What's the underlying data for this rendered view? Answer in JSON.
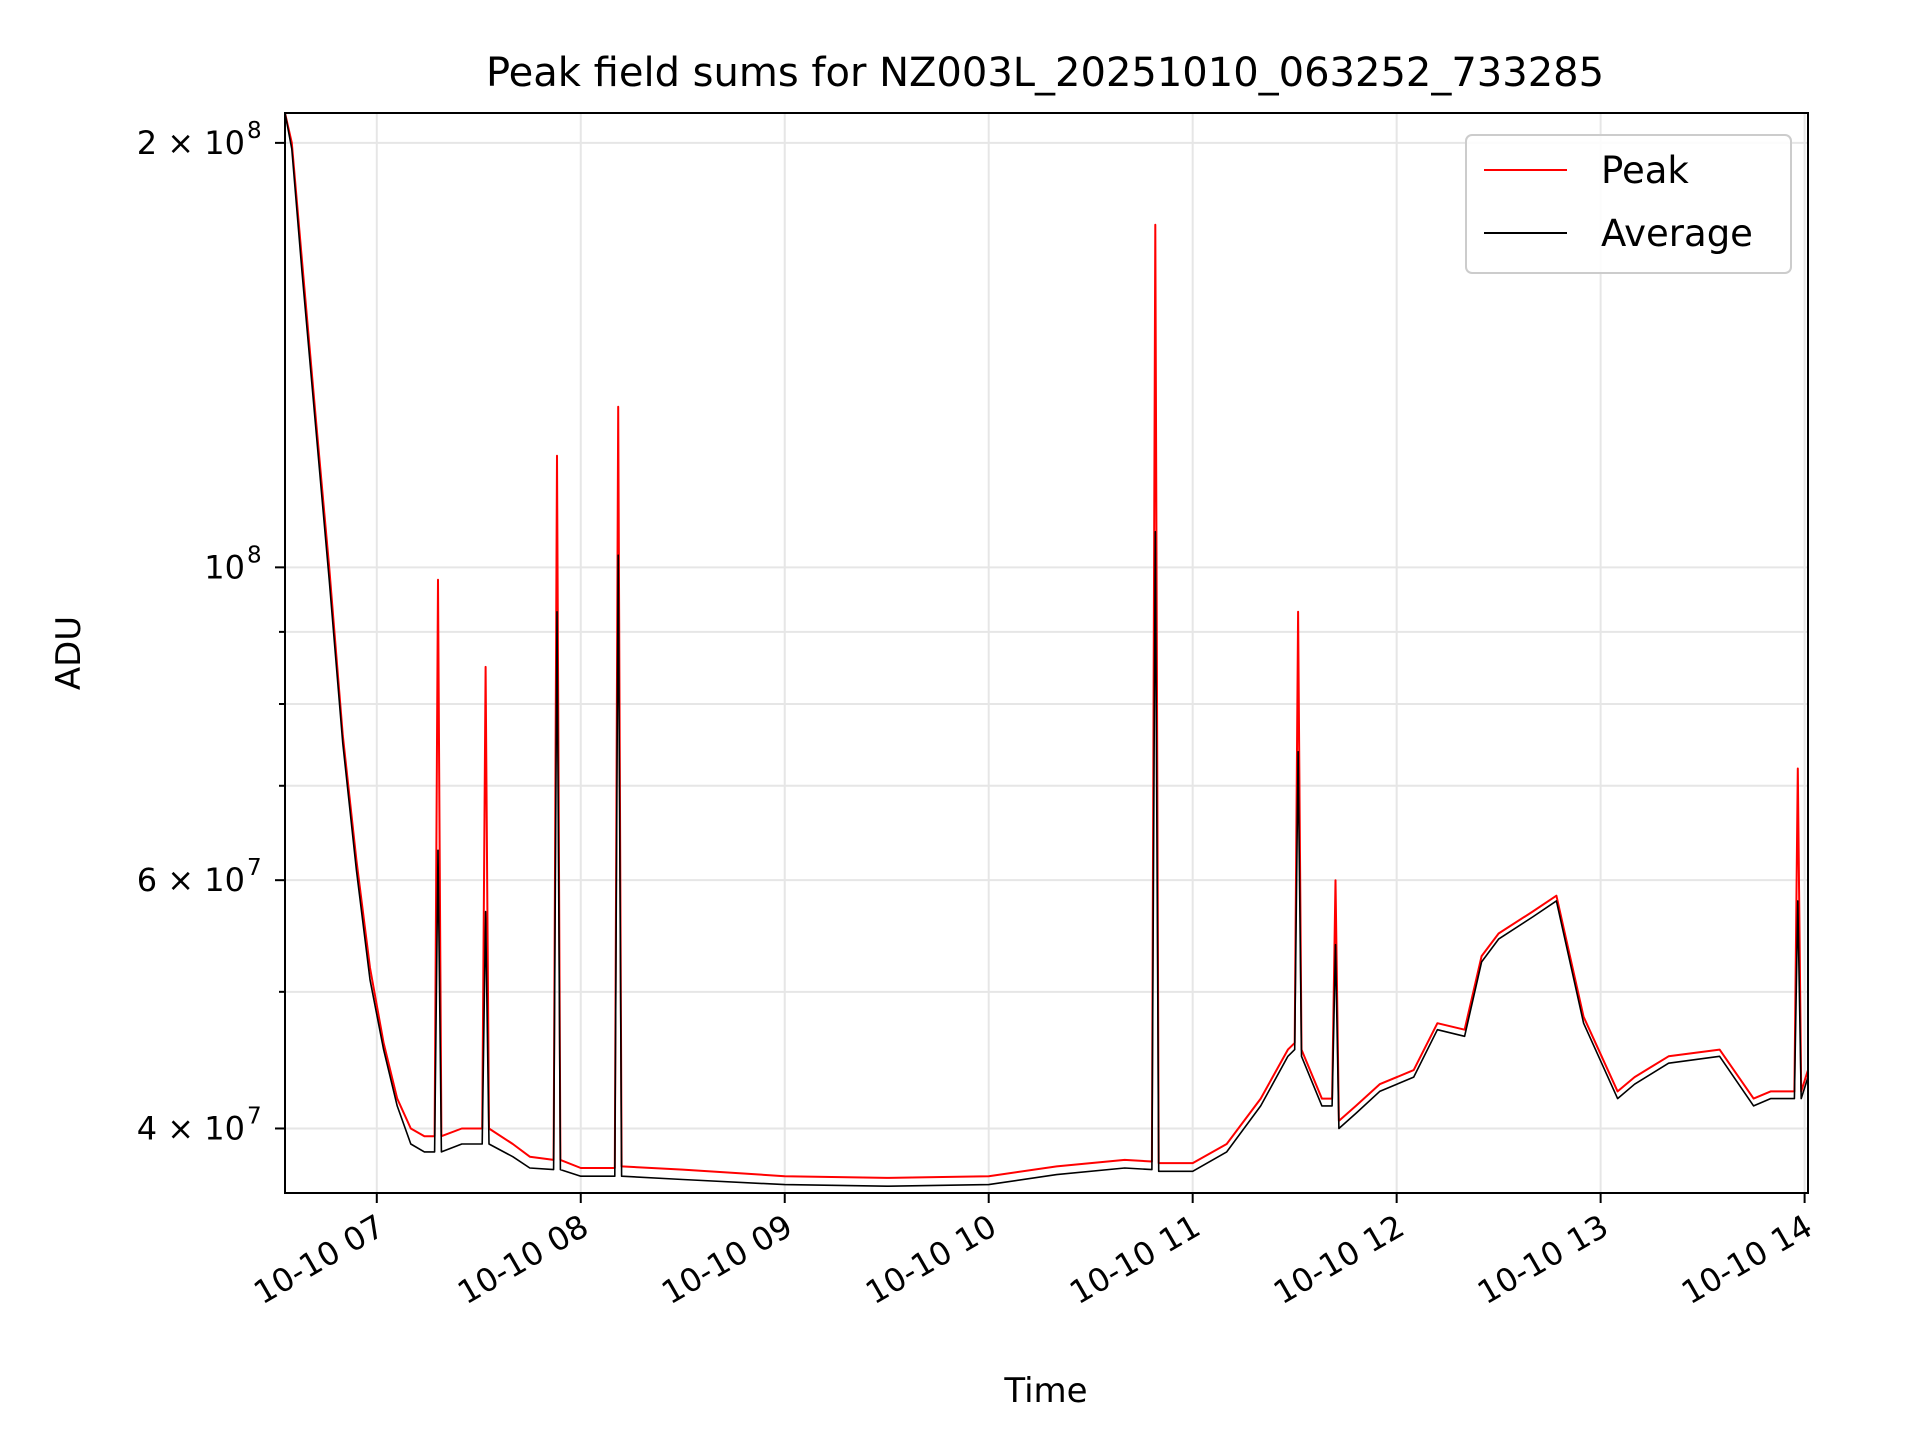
{
  "chart_data": {
    "type": "line",
    "title": "Peak field sums for NZ003L_20251010_063252_733285",
    "xlabel": "Time",
    "ylabel": "ADU",
    "yscale": "log",
    "ylim": [
      36000000,
      210000000
    ],
    "xlim": [
      "2025-10-10 06:33",
      "2025-10-10 14:01"
    ],
    "grid": true,
    "legend_position": "top-right",
    "x_ticks": [
      {
        "x": "2025-10-10 07:00",
        "label": "10-10 07"
      },
      {
        "x": "2025-10-10 08:00",
        "label": "10-10 08"
      },
      {
        "x": "2025-10-10 09:00",
        "label": "10-10 09"
      },
      {
        "x": "2025-10-10 10:00",
        "label": "10-10 10"
      },
      {
        "x": "2025-10-10 11:00",
        "label": "10-10 11"
      },
      {
        "x": "2025-10-10 12:00",
        "label": "10-10 12"
      },
      {
        "x": "2025-10-10 13:00",
        "label": "10-10 13"
      },
      {
        "x": "2025-10-10 14:00",
        "label": "10-10 14"
      }
    ],
    "y_ticks": [
      {
        "value": 40000000,
        "label_base": "4 × 10",
        "label_exp": "7"
      },
      {
        "value": 60000000,
        "label_base": "6 × 10",
        "label_exp": "7"
      },
      {
        "value": 100000000,
        "label_base": "10",
        "label_exp": "8"
      },
      {
        "value": 200000000,
        "label_base": "2 × 10",
        "label_exp": "8"
      }
    ],
    "y_minor_gridlines": [
      50000000,
      70000000,
      80000000,
      90000000
    ],
    "series": [
      {
        "name": "Peak",
        "color": "#ff0000",
        "x": [
          "2025-10-10 06:33",
          "2025-10-10 06:35",
          "2025-10-10 06:38",
          "2025-10-10 06:42",
          "2025-10-10 06:46",
          "2025-10-10 06:50",
          "2025-10-10 06:54",
          "2025-10-10 06:58",
          "2025-10-10 07:02",
          "2025-10-10 07:06",
          "2025-10-10 07:10",
          "2025-10-10 07:14",
          "2025-10-10 07:17",
          "2025-10-10 07:18",
          "2025-10-10 07:19",
          "2025-10-10 07:25",
          "2025-10-10 07:31",
          "2025-10-10 07:32",
          "2025-10-10 07:33",
          "2025-10-10 07:40",
          "2025-10-10 07:45",
          "2025-10-10 07:52",
          "2025-10-10 07:53",
          "2025-10-10 07:54",
          "2025-10-10 08:00",
          "2025-10-10 08:08",
          "2025-10-10 08:10",
          "2025-10-10 08:11",
          "2025-10-10 08:12",
          "2025-10-10 08:30",
          "2025-10-10 09:00",
          "2025-10-10 09:30",
          "2025-10-10 10:00",
          "2025-10-10 10:20",
          "2025-10-10 10:40",
          "2025-10-10 10:48",
          "2025-10-10 10:49",
          "2025-10-10 10:50",
          "2025-10-10 11:00",
          "2025-10-10 11:10",
          "2025-10-10 11:20",
          "2025-10-10 11:28",
          "2025-10-10 11:30",
          "2025-10-10 11:31",
          "2025-10-10 11:32",
          "2025-10-10 11:38",
          "2025-10-10 11:41",
          "2025-10-10 11:42",
          "2025-10-10 11:43",
          "2025-10-10 11:48",
          "2025-10-10 11:55",
          "2025-10-10 12:05",
          "2025-10-10 12:12",
          "2025-10-10 12:20",
          "2025-10-10 12:25",
          "2025-10-10 12:30",
          "2025-10-10 12:40",
          "2025-10-10 12:47",
          "2025-10-10 12:55",
          "2025-10-10 13:05",
          "2025-10-10 13:10",
          "2025-10-10 13:20",
          "2025-10-10 13:35",
          "2025-10-10 13:45",
          "2025-10-10 13:50",
          "2025-10-10 13:55",
          "2025-10-10 13:57",
          "2025-10-10 13:58",
          "2025-10-10 13:59",
          "2025-10-10 14:01"
        ],
        "values": [
          210000000,
          200000000,
          165000000,
          128000000,
          100000000,
          76000000,
          62000000,
          52000000,
          46000000,
          42000000,
          40000000,
          39500000,
          39500000,
          98000000,
          39500000,
          40000000,
          40000000,
          85000000,
          40000000,
          39000000,
          38200000,
          38000000,
          120000000,
          38000000,
          37500000,
          37500000,
          37500000,
          130000000,
          37600000,
          37400000,
          37000000,
          36900000,
          37000000,
          37600000,
          38000000,
          37900000,
          175000000,
          37800000,
          37800000,
          39000000,
          42000000,
          45500000,
          46000000,
          93000000,
          45500000,
          42000000,
          42000000,
          60000000,
          40500000,
          41500000,
          43000000,
          44000000,
          47500000,
          47000000,
          53000000,
          55000000,
          57000000,
          58500000,
          48000000,
          42500000,
          43500000,
          45000000,
          45500000,
          42000000,
          42500000,
          42500000,
          42500000,
          72000000,
          42500000,
          44000000
        ]
      },
      {
        "name": "Average",
        "color": "#000000",
        "x": [
          "2025-10-10 06:33",
          "2025-10-10 06:35",
          "2025-10-10 06:38",
          "2025-10-10 06:42",
          "2025-10-10 06:46",
          "2025-10-10 06:50",
          "2025-10-10 06:54",
          "2025-10-10 06:58",
          "2025-10-10 07:02",
          "2025-10-10 07:06",
          "2025-10-10 07:10",
          "2025-10-10 07:14",
          "2025-10-10 07:17",
          "2025-10-10 07:18",
          "2025-10-10 07:19",
          "2025-10-10 07:25",
          "2025-10-10 07:31",
          "2025-10-10 07:32",
          "2025-10-10 07:33",
          "2025-10-10 07:40",
          "2025-10-10 07:45",
          "2025-10-10 07:52",
          "2025-10-10 07:53",
          "2025-10-10 07:54",
          "2025-10-10 08:00",
          "2025-10-10 08:08",
          "2025-10-10 08:10",
          "2025-10-10 08:11",
          "2025-10-10 08:12",
          "2025-10-10 08:30",
          "2025-10-10 09:00",
          "2025-10-10 09:30",
          "2025-10-10 10:00",
          "2025-10-10 10:20",
          "2025-10-10 10:40",
          "2025-10-10 10:48",
          "2025-10-10 10:49",
          "2025-10-10 10:50",
          "2025-10-10 11:00",
          "2025-10-10 11:10",
          "2025-10-10 11:20",
          "2025-10-10 11:28",
          "2025-10-10 11:30",
          "2025-10-10 11:31",
          "2025-10-10 11:32",
          "2025-10-10 11:38",
          "2025-10-10 11:41",
          "2025-10-10 11:42",
          "2025-10-10 11:43",
          "2025-10-10 11:48",
          "2025-10-10 11:55",
          "2025-10-10 12:05",
          "2025-10-10 12:12",
          "2025-10-10 12:20",
          "2025-10-10 12:25",
          "2025-10-10 12:30",
          "2025-10-10 12:40",
          "2025-10-10 12:47",
          "2025-10-10 12:55",
          "2025-10-10 13:05",
          "2025-10-10 13:10",
          "2025-10-10 13:20",
          "2025-10-10 13:35",
          "2025-10-10 13:45",
          "2025-10-10 13:50",
          "2025-10-10 13:55",
          "2025-10-10 13:57",
          "2025-10-10 13:58",
          "2025-10-10 13:59",
          "2025-10-10 14:01"
        ],
        "values": [
          210000000,
          198000000,
          162000000,
          126000000,
          98000000,
          75000000,
          61000000,
          51000000,
          45500000,
          41500000,
          39000000,
          38500000,
          38500000,
          63000000,
          38500000,
          39000000,
          39000000,
          57000000,
          39000000,
          38200000,
          37500000,
          37400000,
          93000000,
          37400000,
          37000000,
          37000000,
          37000000,
          102000000,
          37000000,
          36800000,
          36500000,
          36400000,
          36500000,
          37100000,
          37500000,
          37400000,
          106000000,
          37300000,
          37300000,
          38500000,
          41500000,
          45000000,
          45500000,
          74000000,
          45000000,
          41500000,
          41500000,
          54000000,
          40000000,
          41000000,
          42500000,
          43500000,
          47000000,
          46500000,
          52500000,
          54500000,
          56500000,
          58000000,
          47500000,
          42000000,
          43000000,
          44500000,
          45000000,
          41500000,
          42000000,
          42000000,
          42000000,
          58000000,
          42000000,
          43500000
        ]
      }
    ]
  }
}
